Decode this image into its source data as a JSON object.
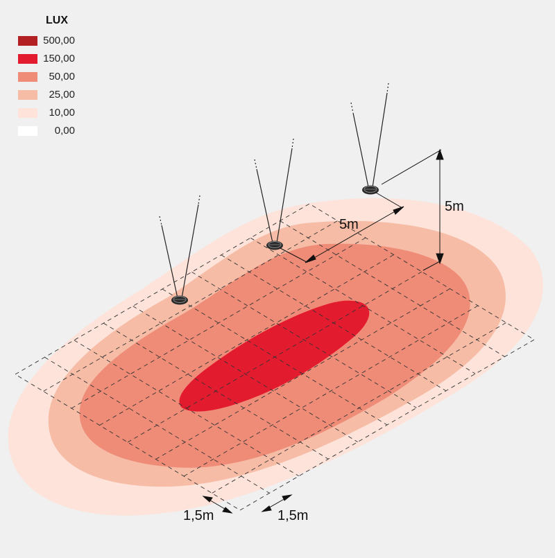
{
  "legend": {
    "title": "LUX",
    "items": [
      {
        "label": "500,00",
        "color": "#b22024"
      },
      {
        "label": "150,00",
        "color": "#e31b2f"
      },
      {
        "label": "50,00",
        "color": "#ef8c78"
      },
      {
        "label": "25,00",
        "color": "#f6bca6"
      },
      {
        "label": "10,00",
        "color": "#fde3da"
      },
      {
        "label": "0,00",
        "color": "#ffffff"
      }
    ]
  },
  "dimensions": {
    "spacing_between_lamps": "5m",
    "mounting_height": "5m",
    "grid_spacing_left": "1,5m",
    "grid_spacing_right": "1,5m"
  },
  "zone_colors": {
    "level_10": "#fde3da",
    "level_25": "#f6bca6",
    "level_50": "#ef8c78",
    "level_150": "#e31b2f"
  }
}
